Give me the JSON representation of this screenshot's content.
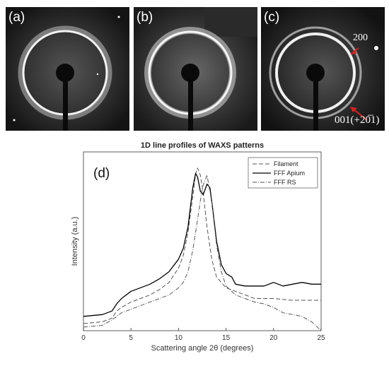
{
  "panels": [
    {
      "label": "(a)"
    },
    {
      "label": "(b)"
    },
    {
      "label": "(c)",
      "annotations": [
        "200",
        "001(+20̅1)"
      ]
    }
  ],
  "colors": {
    "panel_bg": "#111111",
    "ring": "#e8e8e8",
    "arrow": "#d62222"
  },
  "chart_data": {
    "type": "line",
    "title": "1D line profiles of WAXS patterns",
    "panel_label": "(d)",
    "xlabel": "Scattering angle 2θ (degrees)",
    "ylabel": "Intensity (a.u.)",
    "xlim": [
      0,
      25
    ],
    "ylim": [
      0,
      100
    ],
    "xticks": [
      "0",
      "5",
      "10",
      "15",
      "20",
      "25"
    ],
    "legend_position": "top-right",
    "series": [
      {
        "name": "Filament",
        "dash": "6,3",
        "x": [
          0,
          2,
          3,
          3.5,
          4,
          5,
          6,
          7,
          8,
          9,
          10,
          10.5,
          11,
          11.5,
          11.8,
          12,
          12.3,
          12.6,
          13,
          13.5,
          14,
          15,
          16,
          17,
          18,
          20,
          22,
          24,
          25
        ],
        "y": [
          4,
          5,
          7,
          11,
          13,
          16,
          18,
          20,
          23,
          27,
          35,
          42,
          55,
          75,
          88,
          91,
          87,
          77,
          58,
          40,
          30,
          24,
          22,
          20,
          18,
          18,
          17,
          17,
          17
        ]
      },
      {
        "name": "FFF Apium",
        "dash": "",
        "x": [
          0,
          2,
          3,
          3.5,
          4,
          5,
          6,
          7,
          8,
          9,
          10,
          10.5,
          11,
          11.5,
          11.8,
          12,
          12.3,
          12.6,
          13,
          13.3,
          13.6,
          14,
          14.5,
          15,
          15.3,
          15.6,
          16,
          17,
          18,
          19,
          20,
          21,
          22,
          23,
          24,
          25
        ],
        "y": [
          8,
          9,
          11,
          15,
          18,
          22,
          24,
          26,
          29,
          33,
          40,
          46,
          58,
          80,
          88,
          86,
          78,
          76,
          82,
          80,
          68,
          50,
          37,
          32,
          31,
          30,
          26,
          25,
          25,
          25,
          27,
          25,
          26,
          27,
          26,
          26
        ]
      },
      {
        "name": "FFF RS",
        "dash": "6,2,1,2",
        "x": [
          0,
          2,
          3,
          4,
          5,
          6,
          7,
          8,
          9,
          10,
          10.5,
          11,
          11.5,
          12,
          12.5,
          13,
          13.5,
          14,
          14.5,
          15,
          16,
          17,
          18,
          19,
          20,
          21,
          22,
          23,
          24,
          25
        ],
        "y": [
          2,
          3,
          6,
          10,
          12,
          14,
          16,
          18,
          20,
          24,
          27,
          33,
          45,
          62,
          80,
          87,
          72,
          48,
          33,
          25,
          20,
          18,
          16,
          15,
          13,
          10,
          9,
          8,
          5,
          0
        ]
      }
    ]
  }
}
